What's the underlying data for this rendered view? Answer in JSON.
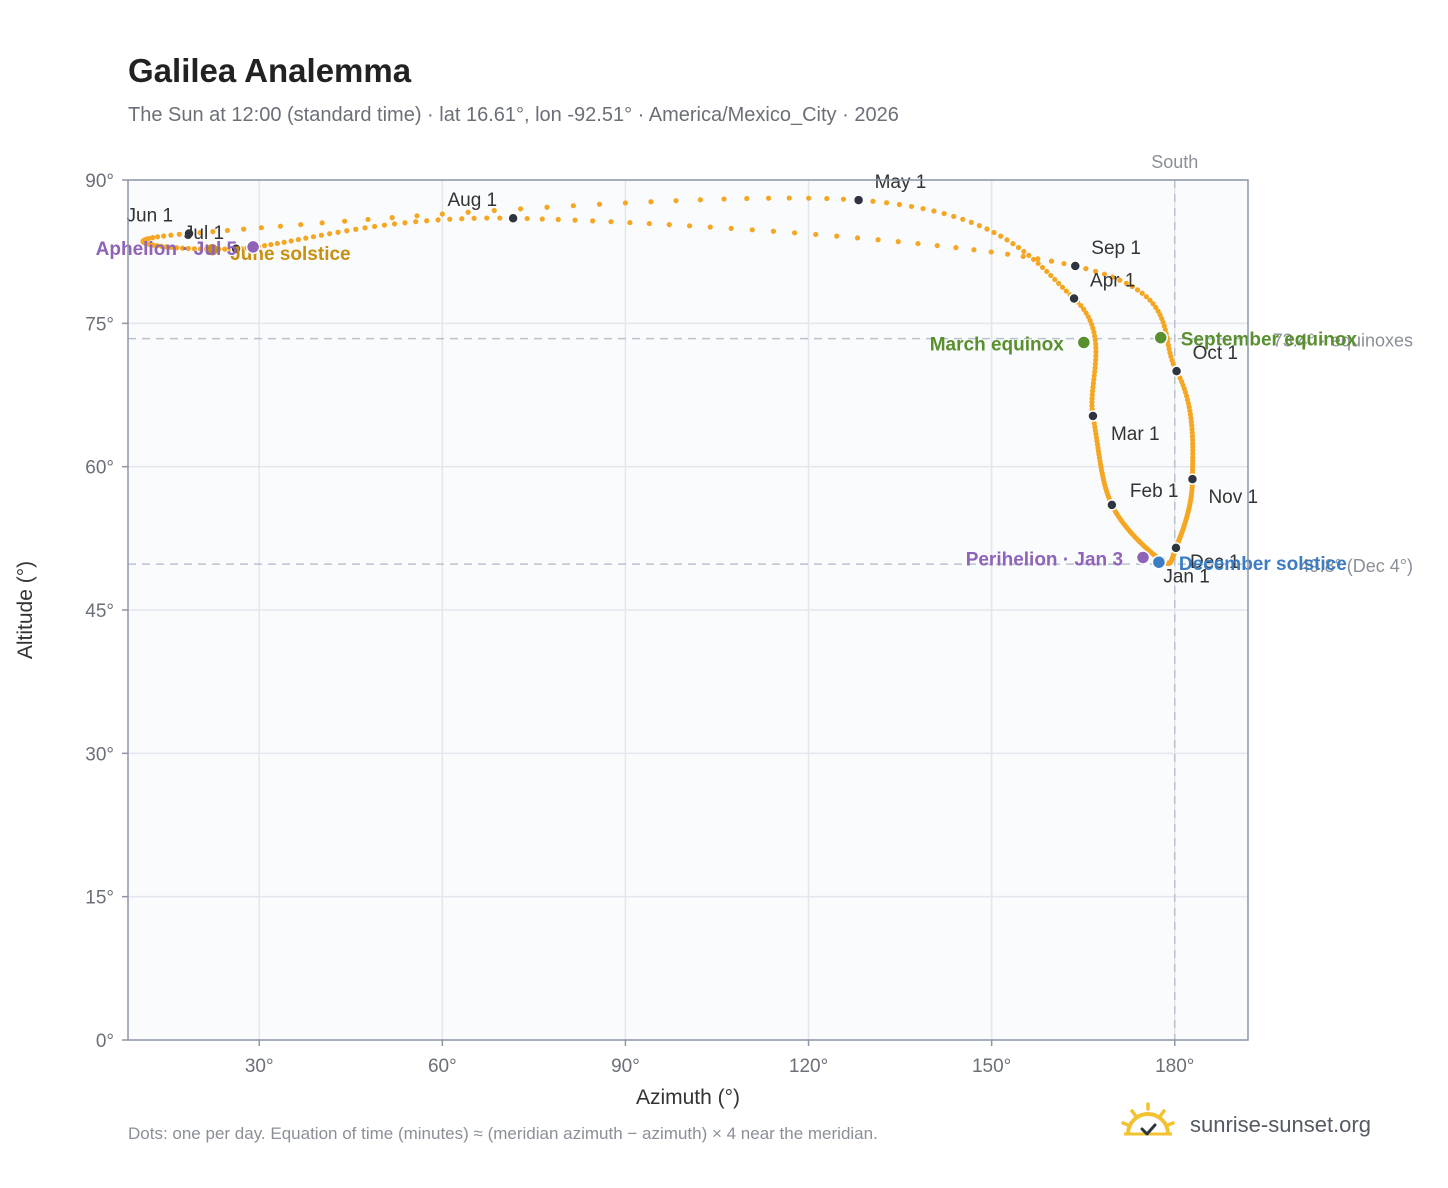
{
  "title": "Galilea Analemma",
  "subtitle": "The Sun at 12:00 (standard time) · lat 16.61°, lon -92.51° · America/Mexico_City · 2026",
  "footnote": "Dots: one per day. Equation of time (minutes) ≈ (meridian azimuth − azimuth) × 4 near the meridian.",
  "brand": {
    "text": "sunrise-sunset.org",
    "icon": "sun-check-icon"
  },
  "colors": {
    "curve": "#f5a623",
    "month_marker": "#2f3540",
    "solstice_june": "#c8900e",
    "solstice_december": "#3b7dc4",
    "equinox": "#5a8f2e",
    "apsis": "#8e63b8",
    "plot_bg": "#f9fbfd",
    "grid": "#e2e7ee",
    "axis": "#8d97a6",
    "ref_line": "#b8c2cf"
  },
  "chart_data": {
    "type": "scatter",
    "xlabel": "Azimuth (°)",
    "ylabel": "Altitude (°)",
    "xlim": [
      8.5,
      192
    ],
    "ylim": [
      0,
      90
    ],
    "xticks": [
      30,
      60,
      90,
      120,
      150,
      180
    ],
    "yticks": [
      0,
      15,
      30,
      45,
      60,
      75,
      90
    ],
    "tick_suffix": "°",
    "grid": true,
    "meridian": {
      "x": 180,
      "label": "South"
    },
    "ref_lines": [
      {
        "y": 73.4,
        "label": "73.4° · equinoxes"
      },
      {
        "y": 49.8,
        "label": "49.8° (Dec 4°)"
      }
    ],
    "months": [
      {
        "label": "Jan 1",
        "az": 177.8,
        "alt": 50.2
      },
      {
        "label": "Feb 1",
        "az": 169.7,
        "alt": 56.0
      },
      {
        "label": "Mar 1",
        "az": 166.6,
        "alt": 65.3
      },
      {
        "label": "Apr 1",
        "az": 163.5,
        "alt": 77.6
      },
      {
        "label": "May 1",
        "az": 128.2,
        "alt": 87.9
      },
      {
        "label": "Jun 1",
        "az": 18.5,
        "alt": 84.4
      },
      {
        "label": "Jul 1",
        "az": 26.2,
        "alt": 82.8
      },
      {
        "label": "Aug 1",
        "az": 71.6,
        "alt": 86.0
      },
      {
        "label": "Sep 1",
        "az": 163.7,
        "alt": 81.0
      },
      {
        "label": "Oct 1",
        "az": 180.3,
        "alt": 70.0
      },
      {
        "label": "Nov 1",
        "az": 182.9,
        "alt": 58.7
      },
      {
        "label": "Dec 1",
        "az": 180.2,
        "alt": 51.5
      }
    ],
    "events": [
      {
        "label": "March equinox",
        "az": 165.1,
        "alt": 73.0,
        "kind": "equinox"
      },
      {
        "label": "September equinox",
        "az": 177.7,
        "alt": 73.5,
        "kind": "equinox"
      },
      {
        "label": "June solstice",
        "az": 22.3,
        "alt": 82.7,
        "kind": "solstice_june"
      },
      {
        "label": "December solstice",
        "az": 177.4,
        "alt": 50.0,
        "kind": "solstice_december"
      },
      {
        "label": "Perihelion · Jan 3",
        "az": 174.8,
        "alt": 50.5,
        "kind": "apsis"
      },
      {
        "label": "Aphelion · Jul 5",
        "az": 29.0,
        "alt": 83.0,
        "kind": "apsis"
      }
    ]
  }
}
